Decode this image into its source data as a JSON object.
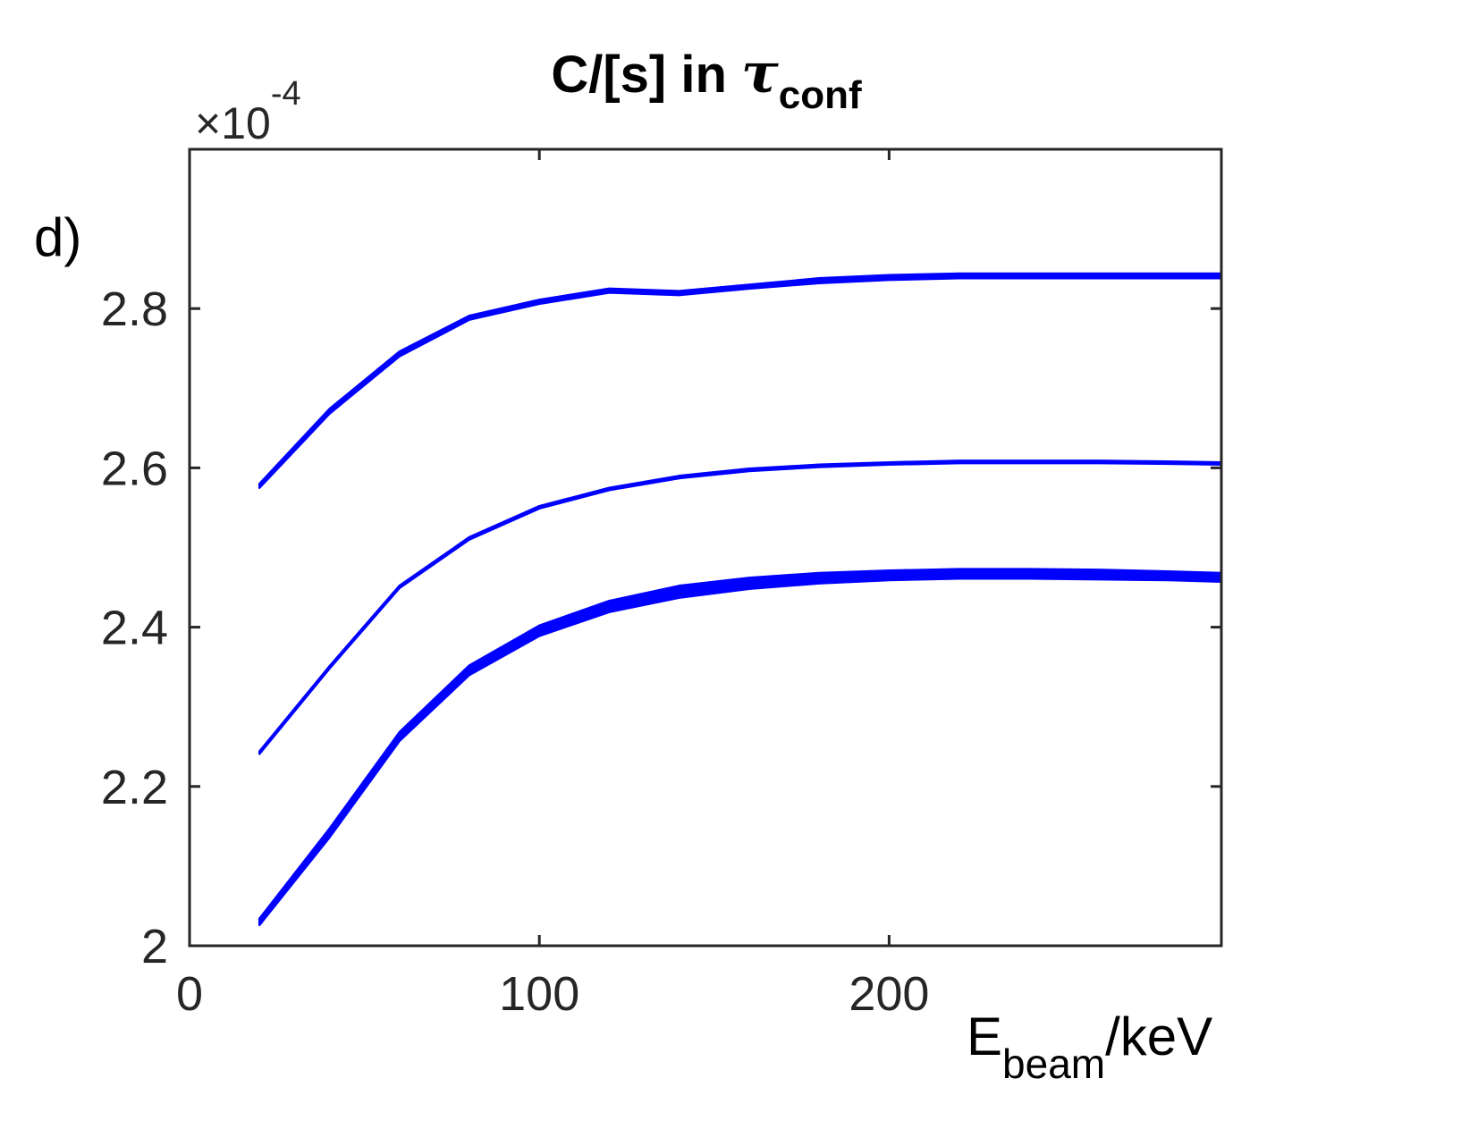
{
  "chart_data": {
    "type": "line",
    "title": {
      "main": "C/[s] in ",
      "symbol": "τ",
      "subscript": "conf"
    },
    "panel_label": "d)",
    "xlabel": {
      "main": "E",
      "subscript": "beam",
      "unit": "/keV"
    },
    "ylabel": "",
    "y_multiplier": {
      "prefix": "×10",
      "exponent": "-4"
    },
    "xlim": [
      0,
      295
    ],
    "ylim": [
      2.0,
      3.0
    ],
    "x_ticks": [
      0,
      100,
      200
    ],
    "x_tick_labels": [
      "0",
      "100",
      "200"
    ],
    "y_ticks": [
      2.0,
      2.2,
      2.4,
      2.6,
      2.8
    ],
    "y_tick_labels": [
      "2",
      "2.2",
      "2.4",
      "2.6",
      "2.8"
    ],
    "grid": false,
    "color": "#0000ff",
    "series": [
      {
        "x": [
          20,
          40,
          60,
          80,
          100,
          120,
          140,
          160,
          180,
          200,
          220,
          240,
          260,
          280,
          295
        ],
        "lower": [
          2.575,
          2.668,
          2.74,
          2.786,
          2.806,
          2.82,
          2.817,
          2.825,
          2.832,
          2.836,
          2.838,
          2.838,
          2.838,
          2.838,
          2.838
        ],
        "upper": [
          2.58,
          2.674,
          2.746,
          2.791,
          2.811,
          2.825,
          2.822,
          2.83,
          2.838,
          2.842,
          2.844,
          2.844,
          2.844,
          2.844,
          2.844
        ]
      },
      {
        "x": [
          20,
          40,
          60,
          80,
          100,
          120,
          140,
          160,
          180,
          200,
          220,
          240,
          260,
          280,
          295
        ],
        "lower": [
          2.241,
          2.348,
          2.449,
          2.51,
          2.549,
          2.572,
          2.587,
          2.596,
          2.601,
          2.604,
          2.606,
          2.606,
          2.606,
          2.605,
          2.604
        ],
        "upper": [
          2.244,
          2.351,
          2.452,
          2.513,
          2.552,
          2.575,
          2.59,
          2.599,
          2.604,
          2.607,
          2.609,
          2.609,
          2.609,
          2.608,
          2.607
        ]
      },
      {
        "x": [
          20,
          40,
          60,
          80,
          100,
          120,
          140,
          160,
          180,
          200,
          220,
          240,
          260,
          280,
          295
        ],
        "lower": [
          2.026,
          2.136,
          2.257,
          2.34,
          2.389,
          2.419,
          2.437,
          2.448,
          2.455,
          2.459,
          2.461,
          2.461,
          2.46,
          2.459,
          2.457
        ],
        "upper": [
          2.034,
          2.147,
          2.268,
          2.352,
          2.402,
          2.433,
          2.452,
          2.462,
          2.468,
          2.471,
          2.473,
          2.473,
          2.472,
          2.47,
          2.468
        ]
      }
    ]
  }
}
